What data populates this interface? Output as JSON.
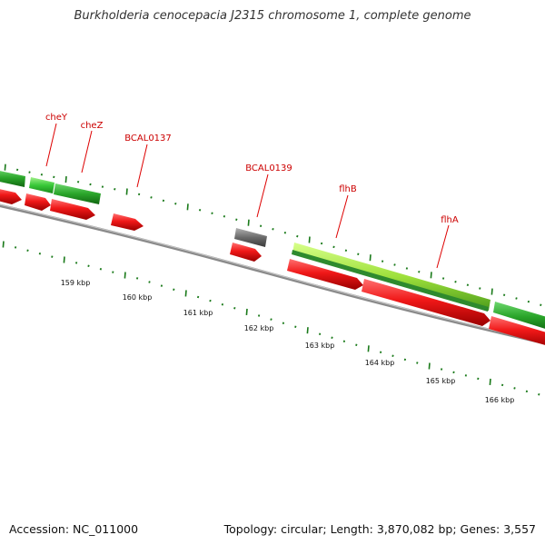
{
  "title": "Burkholderia cenocepacia J2315 chromosome 1, complete genome",
  "footer": {
    "accession": "Accession: NC_011000",
    "summary": "Topology: circular; Length: 3,870,082 bp; Genes: 3,557"
  },
  "colors": {
    "backbone": "#8a8a8a",
    "tick": "#1a7a1a",
    "label": "#cc0000",
    "gene_label_line": "#dd0000",
    "forward_feature": "#22a022",
    "forward_feature_light": "#9de03a",
    "reverse_feature": "#e81010",
    "other_feature": "#6a6a6a"
  },
  "scale_labels": [
    "159 kbp",
    "160 kbp",
    "161 kbp",
    "162 kbp",
    "163 kbp",
    "164 kbp",
    "165 kbp",
    "166 kbp"
  ],
  "gene_labels": [
    "cheY",
    "cheZ",
    "BCAL0137",
    "BCAL0139",
    "flhB",
    "flhA"
  ]
}
